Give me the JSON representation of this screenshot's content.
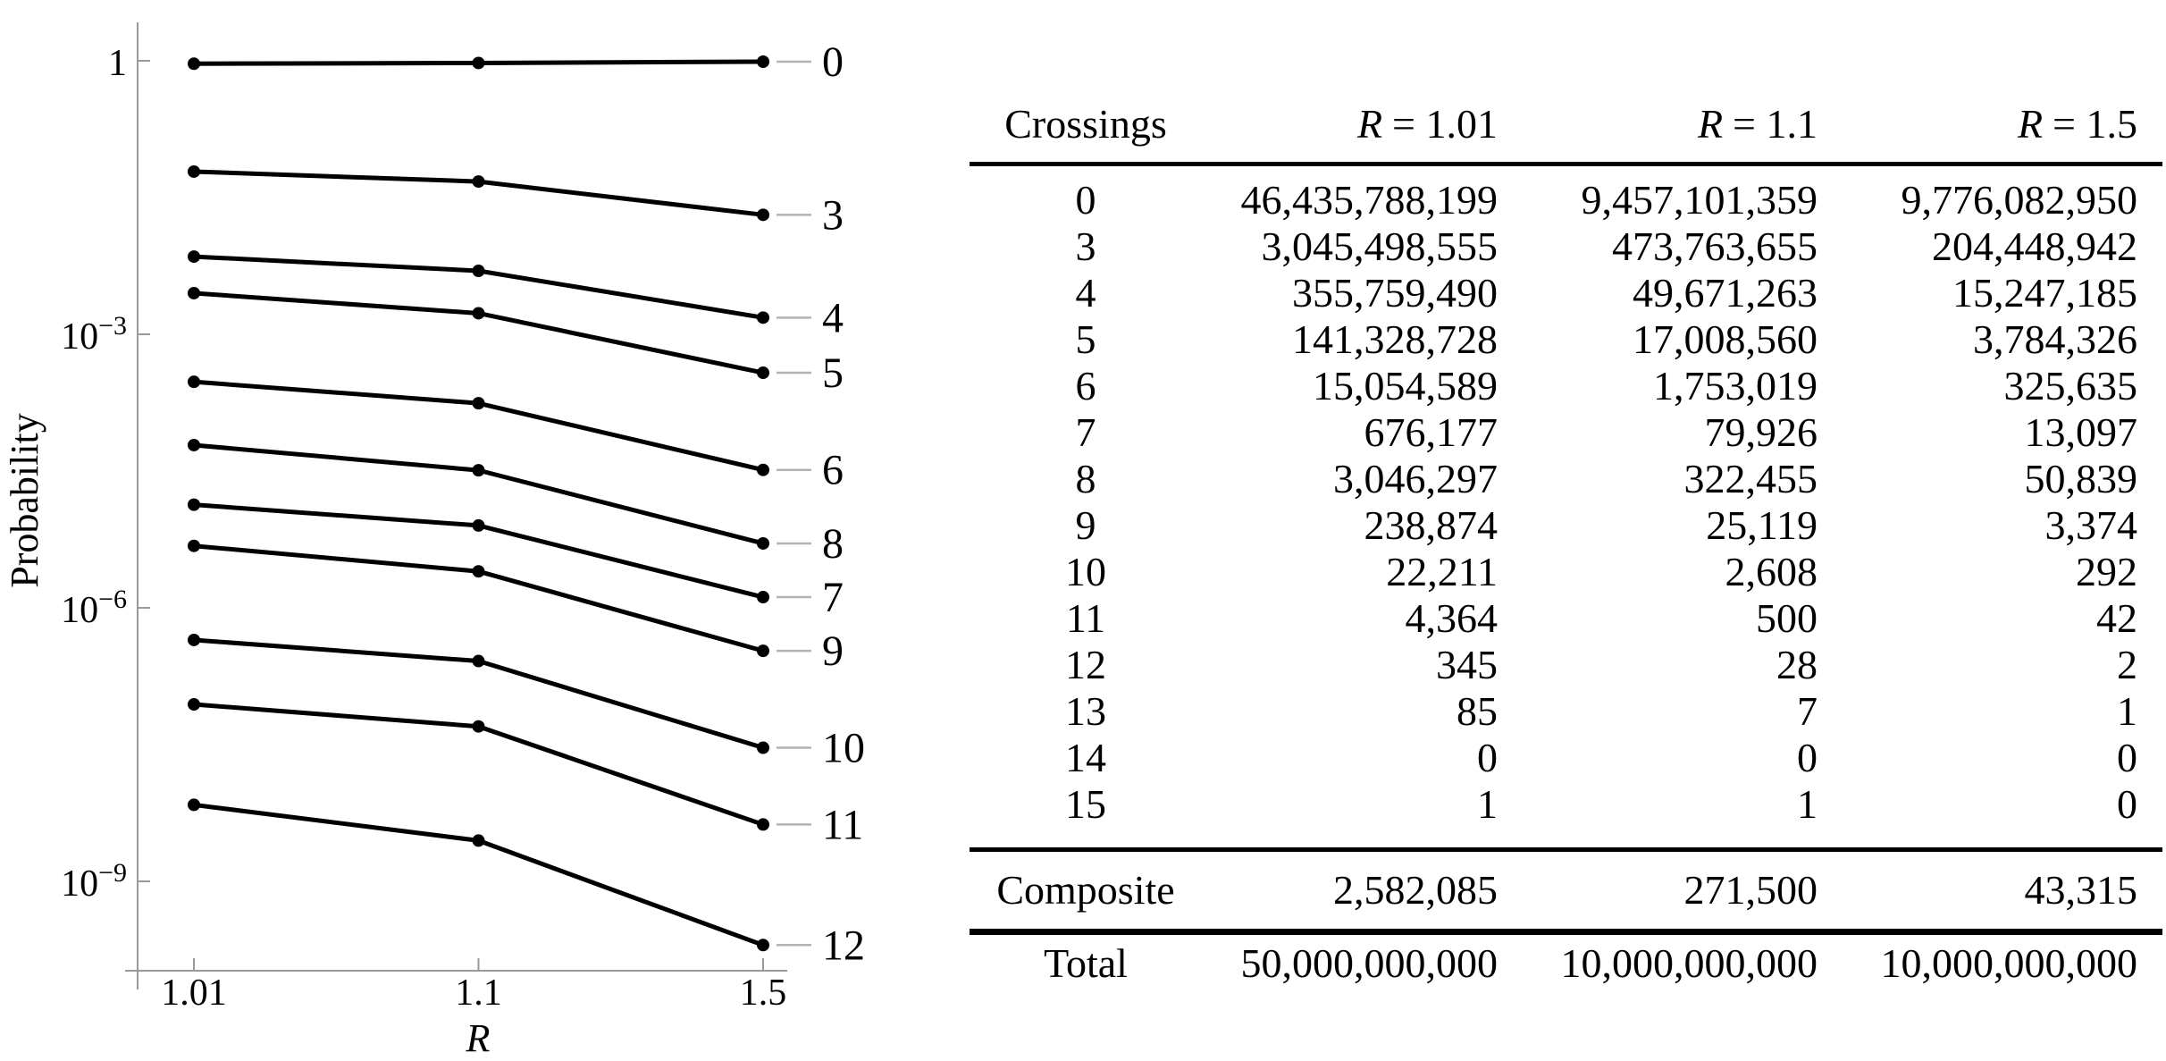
{
  "figure": {
    "background": "#ffffff",
    "text_color": "#000000",
    "axis_color": "#9a9a9a",
    "leader_line_color": "#b3b3b3",
    "series_color": "#000000"
  },
  "chart_data": {
    "type": "line",
    "title": "",
    "xlabel": "R",
    "ylabel": "Probability",
    "x_scale": "equal-spaced-categories",
    "y_scale": "log",
    "x": [
      1.01,
      1.1,
      1.5
    ],
    "x_tick_labels": [
      "1.01",
      "1.1",
      "1.5"
    ],
    "y_ticks": [
      {
        "exp": 0,
        "label": "1",
        "base": "",
        "sup": ""
      },
      {
        "exp": -3,
        "label": "",
        "base": "10",
        "sup": "−3"
      },
      {
        "exp": -6,
        "label": "",
        "base": "10",
        "sup": "−6"
      },
      {
        "exp": -9,
        "label": "",
        "base": "10",
        "sup": "−9"
      }
    ],
    "ylim": [
      2e-10,
      1.2
    ],
    "grid": false,
    "legend_position": "right-edge-labels",
    "series": [
      {
        "label": "0",
        "probabilities": [
          0.92871576,
          0.94571014,
          0.9776083
        ]
      },
      {
        "label": "3",
        "probabilities": [
          0.06090997,
          0.04737637,
          0.02044489
        ]
      },
      {
        "label": "4",
        "probabilities": [
          0.00711519,
          0.00496713,
          0.00152472
        ]
      },
      {
        "label": "5",
        "probabilities": [
          0.00282657,
          0.00170086,
          0.00037843
        ]
      },
      {
        "label": "6",
        "probabilities": [
          0.00030109,
          0.0001753,
          3.25635e-05
        ]
      },
      {
        "label": "7",
        "probabilities": [
          1.35235e-05,
          7.9926e-06,
          1.3097e-06
        ]
      },
      {
        "label": "8",
        "probabilities": [
          6.09259e-05,
          3.22455e-05,
          5.0839e-06
        ]
      },
      {
        "label": "9",
        "probabilities": [
          4.7775e-06,
          2.5119e-06,
          3.374e-07
        ]
      },
      {
        "label": "10",
        "probabilities": [
          4.4422e-07,
          2.608e-07,
          2.92e-08
        ]
      },
      {
        "label": "11",
        "probabilities": [
          8.728e-08,
          5e-08,
          4.2e-09
        ]
      },
      {
        "label": "12",
        "probabilities": [
          6.9e-09,
          2.8e-09,
          2e-10
        ]
      }
    ]
  },
  "table": {
    "headers": {
      "crossings": "Crossings",
      "col1": {
        "var": "R",
        "rest": "= 1.01"
      },
      "col2": {
        "var": "R",
        "rest": "= 1.1"
      },
      "col3": {
        "var": "R",
        "rest": "= 1.5"
      }
    },
    "rows": [
      {
        "crossings": "0",
        "r101": "46,435,788,199",
        "r11": "9,457,101,359",
        "r15": "9,776,082,950"
      },
      {
        "crossings": "3",
        "r101": "3,045,498,555",
        "r11": "473,763,655",
        "r15": "204,448,942"
      },
      {
        "crossings": "4",
        "r101": "355,759,490",
        "r11": "49,671,263",
        "r15": "15,247,185"
      },
      {
        "crossings": "5",
        "r101": "141,328,728",
        "r11": "17,008,560",
        "r15": "3,784,326"
      },
      {
        "crossings": "6",
        "r101": "15,054,589",
        "r11": "1,753,019",
        "r15": "325,635"
      },
      {
        "crossings": "7",
        "r101": "676,177",
        "r11": "79,926",
        "r15": "13,097"
      },
      {
        "crossings": "8",
        "r101": "3,046,297",
        "r11": "322,455",
        "r15": "50,839"
      },
      {
        "crossings": "9",
        "r101": "238,874",
        "r11": "25,119",
        "r15": "3,374"
      },
      {
        "crossings": "10",
        "r101": "22,211",
        "r11": "2,608",
        "r15": "292"
      },
      {
        "crossings": "11",
        "r101": "4,364",
        "r11": "500",
        "r15": "42"
      },
      {
        "crossings": "12",
        "r101": "345",
        "r11": "28",
        "r15": "2"
      },
      {
        "crossings": "13",
        "r101": "85",
        "r11": "7",
        "r15": "1"
      },
      {
        "crossings": "14",
        "r101": "0",
        "r11": "0",
        "r15": "0"
      },
      {
        "crossings": "15",
        "r101": "1",
        "r11": "1",
        "r15": "0"
      }
    ],
    "composite": {
      "label": "Composite",
      "r101": "2,582,085",
      "r11": "271,500",
      "r15": "43,315"
    },
    "total": {
      "label": "Total",
      "r101": "50,000,000,000",
      "r11": "10,000,000,000",
      "r15": "10,000,000,000"
    }
  }
}
